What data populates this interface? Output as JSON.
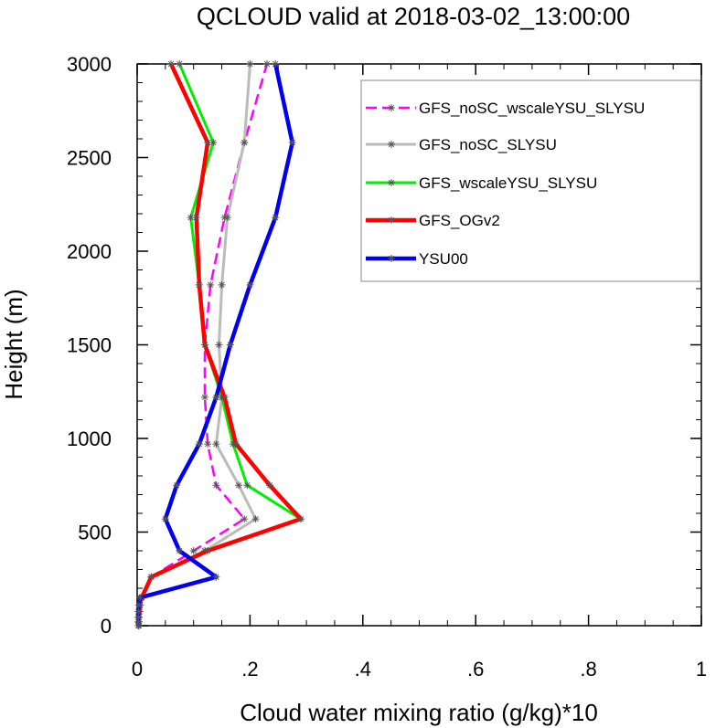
{
  "chart_data": {
    "type": "line",
    "title": "QCLOUD valid at 2018-03-02_13:00:00",
    "xlabel": "Cloud water mixing ratio (g/kg)*10",
    "ylabel": "Height (m)",
    "xlim": [
      0,
      1
    ],
    "ylim": [
      0,
      3000
    ],
    "x_ticks": [
      0,
      0.2,
      0.4,
      0.6,
      0.8,
      1
    ],
    "x_tick_labels": [
      "0",
      ".2",
      ".4",
      ".6",
      ".8",
      "1"
    ],
    "y_ticks": [
      0,
      500,
      1000,
      1500,
      2000,
      2500,
      3000
    ],
    "y_tick_labels": [
      "0",
      "500",
      "1000",
      "1500",
      "2000",
      "2500",
      "3000"
    ],
    "grid": false,
    "legend_position": "top-right",
    "series": [
      {
        "name": "GFS_noSC_wscaleYSU_SLYSU",
        "color": "#ff00ff",
        "dashed": true,
        "line_width": 2.5,
        "points": [
          [
            0.003,
            0
          ],
          [
            0.003,
            20
          ],
          [
            0.003,
            45
          ],
          [
            0.004,
            75
          ],
          [
            0.005,
            110
          ],
          [
            0.008,
            150
          ],
          [
            0.025,
            260
          ],
          [
            0.1,
            400
          ],
          [
            0.19,
            570
          ],
          [
            0.14,
            750
          ],
          [
            0.125,
            970
          ],
          [
            0.12,
            1220
          ],
          [
            0.12,
            1500
          ],
          [
            0.13,
            1820
          ],
          [
            0.155,
            2180
          ],
          [
            0.19,
            2580
          ],
          [
            0.23,
            3000
          ]
        ]
      },
      {
        "name": "GFS_noSC_SLYSU",
        "color": "#bbbbbb",
        "dashed": false,
        "line_width": 3,
        "points": [
          [
            0.003,
            0
          ],
          [
            0.003,
            20
          ],
          [
            0.003,
            45
          ],
          [
            0.004,
            75
          ],
          [
            0.005,
            110
          ],
          [
            0.008,
            150
          ],
          [
            0.025,
            260
          ],
          [
            0.12,
            400
          ],
          [
            0.21,
            570
          ],
          [
            0.18,
            750
          ],
          [
            0.14,
            970
          ],
          [
            0.15,
            1220
          ],
          [
            0.145,
            1500
          ],
          [
            0.15,
            1820
          ],
          [
            0.16,
            2180
          ],
          [
            0.19,
            2580
          ],
          [
            0.2,
            3000
          ]
        ]
      },
      {
        "name": "GFS_wscaleYSU_SLYSU",
        "color": "#00ee00",
        "dashed": false,
        "line_width": 3,
        "points": [
          [
            0.003,
            0
          ],
          [
            0.003,
            20
          ],
          [
            0.003,
            45
          ],
          [
            0.004,
            75
          ],
          [
            0.005,
            110
          ],
          [
            0.008,
            150
          ],
          [
            0.025,
            260
          ],
          [
            0.12,
            400
          ],
          [
            0.29,
            570
          ],
          [
            0.195,
            750
          ],
          [
            0.17,
            970
          ],
          [
            0.15,
            1220
          ],
          [
            0.12,
            1500
          ],
          [
            0.11,
            1820
          ],
          [
            0.095,
            2180
          ],
          [
            0.135,
            2580
          ],
          [
            0.075,
            3000
          ]
        ]
      },
      {
        "name": "GFS_OGv2",
        "color": "#ff0000",
        "dashed": false,
        "line_width": 4.5,
        "points": [
          [
            0.003,
            0
          ],
          [
            0.003,
            20
          ],
          [
            0.003,
            45
          ],
          [
            0.004,
            75
          ],
          [
            0.005,
            110
          ],
          [
            0.008,
            150
          ],
          [
            0.025,
            260
          ],
          [
            0.125,
            400
          ],
          [
            0.29,
            570
          ],
          [
            0.235,
            750
          ],
          [
            0.175,
            970
          ],
          [
            0.155,
            1220
          ],
          [
            0.12,
            1500
          ],
          [
            0.11,
            1820
          ],
          [
            0.105,
            2180
          ],
          [
            0.125,
            2580
          ],
          [
            0.06,
            3000
          ]
        ]
      },
      {
        "name": "YSU00",
        "color": "#0000ee",
        "dashed": false,
        "line_width": 4.5,
        "points": [
          [
            0.002,
            0
          ],
          [
            0.002,
            20
          ],
          [
            0.002,
            45
          ],
          [
            0.002,
            75
          ],
          [
            0.003,
            110
          ],
          [
            0.005,
            150
          ],
          [
            0.14,
            260
          ],
          [
            0.075,
            400
          ],
          [
            0.05,
            570
          ],
          [
            0.07,
            750
          ],
          [
            0.11,
            970
          ],
          [
            0.14,
            1220
          ],
          [
            0.165,
            1500
          ],
          [
            0.2,
            1820
          ],
          [
            0.245,
            2180
          ],
          [
            0.275,
            2580
          ],
          [
            0.245,
            3000
          ]
        ]
      }
    ]
  }
}
